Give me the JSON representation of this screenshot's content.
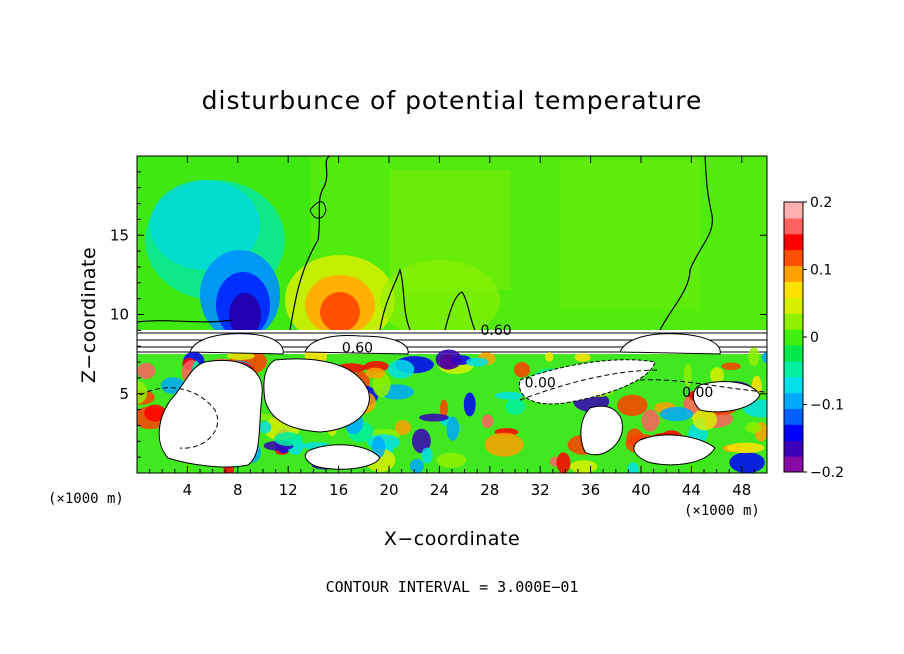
{
  "chart_data": {
    "type": "heatmap",
    "title": "disturbunce of potential temperature",
    "xlabel": "X−coordinate",
    "ylabel": "Z−coordinate",
    "x_unit": "(×1000 m)",
    "xlim": [
      0,
      50
    ],
    "ylim": [
      0,
      20
    ],
    "x_ticks": [
      4,
      8,
      12,
      16,
      20,
      24,
      28,
      32,
      36,
      40,
      44,
      48
    ],
    "y_ticks": [
      5,
      10,
      15
    ],
    "colorbar": {
      "range": [
        -0.2,
        0.2
      ],
      "labels": [
        "0.2",
        "0.1",
        "0",
        "−0.1",
        "−0.2"
      ],
      "label_values": [
        0.2,
        0.1,
        0,
        -0.1,
        -0.2
      ],
      "colors": [
        "#8a0aa8",
        "#3a00b8",
        "#0000ff",
        "#0060ff",
        "#00a8ff",
        "#00e0e8",
        "#00f0a0",
        "#00e84a",
        "#40f010",
        "#90f000",
        "#d8f000",
        "#ffe000",
        "#ffa000",
        "#ff5000",
        "#ff0000",
        "#ff6060",
        "#ffb0b0"
      ]
    },
    "contour_labels": [
      {
        "text": "0.60",
        "x": 28.5,
        "z": 8.7
      },
      {
        "text": "0.60",
        "x": 17.5,
        "z": 7.6
      },
      {
        "text": "0.00",
        "x": 32.0,
        "z": 5.4
      },
      {
        "text": "0.00",
        "x": 44.5,
        "z": 4.8
      }
    ],
    "contour_interval_note": "CONTOUR INTERVAL = 3.000E−01",
    "annotations": {
      "cold_anomaly": {
        "x": 9,
        "z": 10.5
      },
      "warm_anomaly": {
        "x": 16,
        "z": 11
      }
    }
  }
}
